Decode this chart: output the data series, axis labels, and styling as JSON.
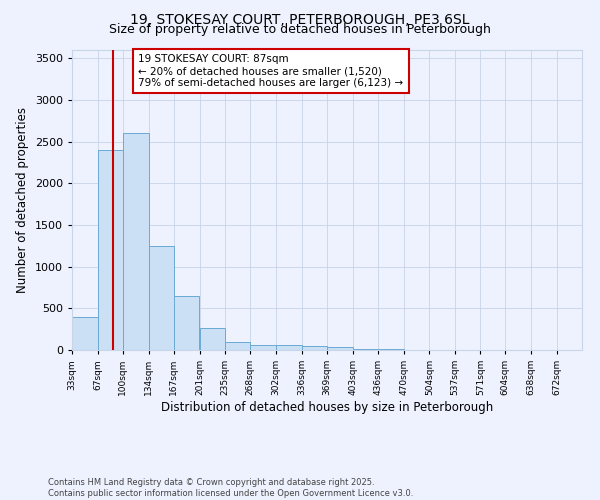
{
  "title": "19, STOKESAY COURT, PETERBOROUGH, PE3 6SL",
  "subtitle": "Size of property relative to detached houses in Peterborough",
  "xlabel": "Distribution of detached houses by size in Peterborough",
  "ylabel": "Number of detached properties",
  "bin_edges": [
    33,
    67,
    100,
    134,
    167,
    201,
    235,
    268,
    302,
    336,
    369,
    403,
    436,
    470,
    504,
    537,
    571,
    604,
    638,
    672,
    705
  ],
  "bar_heights": [
    400,
    2400,
    2600,
    1250,
    650,
    270,
    100,
    60,
    55,
    50,
    35,
    10,
    8,
    5,
    4,
    3,
    2,
    2,
    1,
    1
  ],
  "bar_color": "#cce0f5",
  "bar_edge_color": "#6aaad4",
  "vline_x": 87,
  "vline_color": "#cc0000",
  "annotation_text": "19 STOKESAY COURT: 87sqm\n← 20% of detached houses are smaller (1,520)\n79% of semi-detached houses are larger (6,123) →",
  "annotation_box_color": "#ffffff",
  "annotation_box_edge_color": "#cc0000",
  "ylim": [
    0,
    3600
  ],
  "yticks": [
    0,
    500,
    1000,
    1500,
    2000,
    2500,
    3000,
    3500
  ],
  "background_color": "#eef2ff",
  "grid_color": "#c8d4e8",
  "footer_text": "Contains HM Land Registry data © Crown copyright and database right 2025.\nContains public sector information licensed under the Open Government Licence v3.0.",
  "title_fontsize": 10,
  "subtitle_fontsize": 9,
  "annot_fontsize": 7.5
}
